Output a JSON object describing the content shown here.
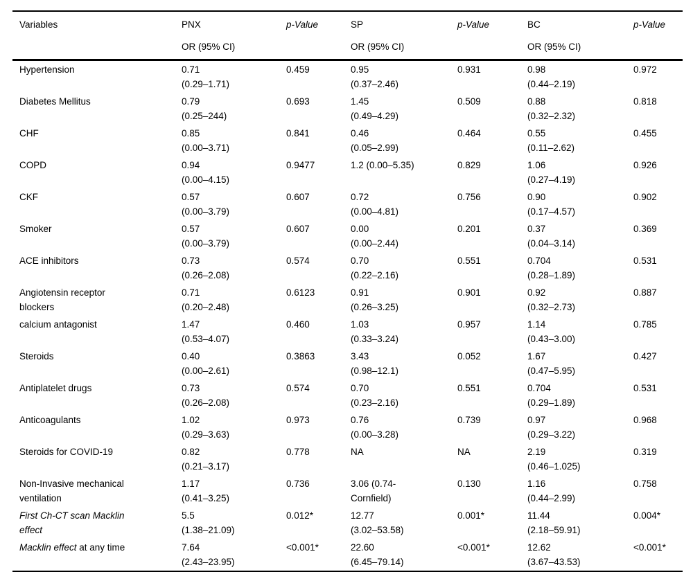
{
  "table": {
    "header": {
      "cols": [
        {
          "line1": "Variables",
          "line2": ""
        },
        {
          "line1": "PNX",
          "line2": "OR (95% CI)"
        },
        {
          "line1": "p-Value",
          "line2": ""
        },
        {
          "line1": "SP",
          "line2": "OR (95% CI)"
        },
        {
          "line1": "p-Value",
          "line2": ""
        },
        {
          "line1": "BC",
          "line2": "OR (95% CI)"
        },
        {
          "line1": "p-Value",
          "line2": ""
        }
      ]
    },
    "rows": [
      {
        "variable": [
          {
            "i": "",
            "t": "Hypertension"
          }
        ],
        "pnx": [
          "0.71",
          "(0.29–1.71)"
        ],
        "p1": "0.459",
        "sp": [
          "0.95",
          "(0.37–2.46)"
        ],
        "p2": "0.931",
        "bc": [
          "0.98",
          "(0.44–2.19)"
        ],
        "p3": "0.972"
      },
      {
        "variable": [
          {
            "i": "",
            "t": "Diabetes Mellitus"
          }
        ],
        "pnx": [
          "0.79",
          "(0.25–244)"
        ],
        "p1": "0.693",
        "sp": [
          "1.45",
          "(0.49–4.29)"
        ],
        "p2": "0.509",
        "bc": [
          "0.88",
          "(0.32–2.32)"
        ],
        "p3": "0.818"
      },
      {
        "variable": [
          {
            "i": "",
            "t": "CHF"
          }
        ],
        "pnx": [
          "0.85",
          "(0.00–3.71)"
        ],
        "p1": "0.841",
        "sp": [
          "0.46",
          "(0.05–2.99)"
        ],
        "p2": "0.464",
        "bc": [
          "0.55",
          "(0.11–2.62)"
        ],
        "p3": "0.455"
      },
      {
        "variable": [
          {
            "i": "",
            "t": "COPD"
          }
        ],
        "pnx": [
          "0.94",
          "(0.00–4.15)"
        ],
        "p1": "0.9477",
        "sp": [
          "1.2 (0.00–5.35)"
        ],
        "p2": "0.829",
        "bc": [
          "1.06",
          "(0.27–4.19)"
        ],
        "p3": "0.926"
      },
      {
        "variable": [
          {
            "i": "",
            "t": "CKF"
          }
        ],
        "pnx": [
          "0.57",
          "(0.00–3.79)"
        ],
        "p1": "0.607",
        "sp": [
          "0.72",
          "(0.00–4.81)"
        ],
        "p2": "0.756",
        "bc": [
          "0.90",
          "(0.17–4.57)"
        ],
        "p3": "0.902"
      },
      {
        "variable": [
          {
            "i": "",
            "t": "Smoker"
          }
        ],
        "pnx": [
          "0.57",
          "(0.00–3.79)"
        ],
        "p1": "0.607",
        "sp": [
          "0.00",
          "(0.00–2.44)"
        ],
        "p2": "0.201",
        "bc": [
          "0.37",
          "(0.04–3.14)"
        ],
        "p3": "0.369"
      },
      {
        "variable": [
          {
            "i": "",
            "t": "ACE inhibitors"
          }
        ],
        "pnx": [
          "0.73",
          "(0.26–2.08)"
        ],
        "p1": "0.574",
        "sp": [
          "0.70",
          "(0.22–2.16)"
        ],
        "p2": "0.551",
        "bc": [
          "0.704",
          "(0.28–1.89)"
        ],
        "p3": "0.531"
      },
      {
        "variable": [
          {
            "i": "",
            "t": "Angiotensin receptor"
          },
          {
            "i": "",
            "t": "blockers"
          }
        ],
        "pnx": [
          "0.71",
          "(0.20–2.48)"
        ],
        "p1": "0.6123",
        "sp": [
          "0.91",
          "(0.26–3.25)"
        ],
        "p2": "0.901",
        "bc": [
          "0.92",
          "(0.32–2.73)"
        ],
        "p3": "0.887"
      },
      {
        "variable": [
          {
            "i": "",
            "t": "calcium antagonist"
          }
        ],
        "pnx": [
          "1.47",
          "(0.53–4.07)"
        ],
        "p1": "0.460",
        "sp": [
          "1.03",
          "(0.33–3.24)"
        ],
        "p2": "0.957",
        "bc": [
          "1.14",
          "(0.43–3.00)"
        ],
        "p3": "0.785"
      },
      {
        "variable": [
          {
            "i": "",
            "t": "Steroids"
          }
        ],
        "pnx": [
          "0.40",
          "(0.00–2.61)"
        ],
        "p1": "0.3863",
        "sp": [
          "3.43",
          "(0.98–12.1)"
        ],
        "p2": "0.052",
        "bc": [
          "1.67",
          "(0.47–5.95)"
        ],
        "p3": "0.427"
      },
      {
        "variable": [
          {
            "i": "",
            "t": "Antiplatelet drugs"
          }
        ],
        "pnx": [
          "0.73",
          "(0.26–2.08)"
        ],
        "p1": "0.574",
        "sp": [
          "0.70",
          "(0.23–2.16)"
        ],
        "p2": "0.551",
        "bc": [
          "0.704",
          "(0.29–1.89)"
        ],
        "p3": "0.531"
      },
      {
        "variable": [
          {
            "i": "",
            "t": "Anticoagulants"
          }
        ],
        "pnx": [
          "1.02",
          "(0.29–3.63)"
        ],
        "p1": "0.973",
        "sp": [
          "0.76",
          "(0.00–3.28)"
        ],
        "p2": "0.739",
        "bc": [
          "0.97",
          "(0.29–3.22)"
        ],
        "p3": "0.968"
      },
      {
        "variable": [
          {
            "i": "",
            "t": "Steroids for COVID-19"
          }
        ],
        "pnx": [
          "0.82",
          "(0.21–3.17)"
        ],
        "p1": "0.778",
        "sp": [
          "NA"
        ],
        "p2": "NA",
        "bc": [
          "2.19",
          "(0.46–1.025)"
        ],
        "p3": "0.319"
      },
      {
        "variable": [
          {
            "i": "",
            "t": "Non-Invasive mechanical"
          },
          {
            "i": "",
            "t": "ventilation"
          }
        ],
        "pnx": [
          "1.17",
          "(0.41–3.25)"
        ],
        "p1": "0.736",
        "sp": [
          "3.06 (0.74-",
          "Cornfield)"
        ],
        "p2": "0.130",
        "bc": [
          "1.16",
          "(0.44–2.99)"
        ],
        "p3": "0.758"
      },
      {
        "variable": [
          {
            "i": "First Ch-CT scan Macklin",
            "t": ""
          },
          {
            "i": "effect",
            "t": ""
          }
        ],
        "pnx": [
          "5.5",
          "(1.38–21.09)"
        ],
        "p1": "0.012*",
        "sp": [
          "12.77",
          "(3.02–53.58)"
        ],
        "p2": "0.001*",
        "bc": [
          "11.44",
          "(2.18–59.91)"
        ],
        "p3": "0.004*"
      },
      {
        "variable": [
          {
            "i": "Macklin effect",
            "t": " at any time"
          }
        ],
        "pnx": [
          "7.64",
          "(2.43–23.95)"
        ],
        "p1": "<0.001*",
        "sp": [
          "22.60",
          "(6.45–79.14)"
        ],
        "p2": "<0.001*",
        "bc": [
          "12.62",
          "(3.67–43.53)"
        ],
        "p3": "<0.001*"
      }
    ]
  }
}
